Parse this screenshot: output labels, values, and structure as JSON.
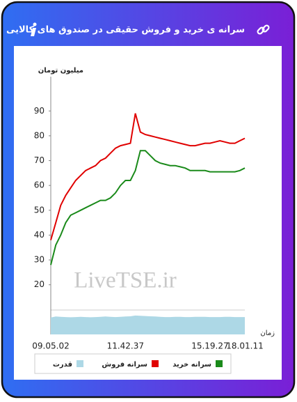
{
  "header": {
    "title": "سرانه ی خرید و فروش حقیقی در صندوق های کالایی"
  },
  "chart_data": {
    "type": "line",
    "y_label": "میلیون تومان",
    "x_label": "زمان",
    "watermark": "LiveTSE.ir",
    "categories": [
      "09.05.02",
      null,
      null,
      null,
      null,
      null,
      null,
      null,
      null,
      null,
      null,
      null,
      null,
      null,
      null,
      "11.42.37",
      null,
      null,
      null,
      null,
      null,
      null,
      null,
      null,
      null,
      null,
      null,
      null,
      null,
      null,
      null,
      null,
      "15.19.27",
      null,
      null,
      null,
      null,
      null,
      null,
      "18.01.11"
    ],
    "ylim": [
      0,
      94
    ],
    "yticks": [
      20,
      30,
      40,
      50,
      60,
      70,
      80,
      90
    ],
    "series": [
      {
        "name": "سرانه خرید",
        "color": "#1a8a1a",
        "values": [
          28,
          36,
          40,
          45,
          48,
          49,
          50,
          51,
          52,
          53,
          54,
          54,
          55,
          57,
          60,
          62,
          62,
          66,
          74,
          74,
          72,
          70,
          69,
          68.5,
          68,
          68,
          67.5,
          67,
          66,
          66,
          66,
          66,
          65.5,
          65.5,
          65.5,
          65.5,
          65.5,
          65.5,
          66,
          67
        ]
      },
      {
        "name": "سرانه فروش",
        "color": "#e00000",
        "values": [
          38,
          45,
          52,
          56,
          59,
          62,
          64,
          66,
          67,
          68,
          70,
          71,
          73,
          75,
          76,
          76.5,
          77,
          89,
          81.5,
          80.5,
          80,
          79.5,
          79,
          78.5,
          78,
          77.5,
          77,
          76.5,
          76,
          76,
          76.5,
          77,
          77,
          77.5,
          78,
          77.5,
          77,
          77,
          78,
          79
        ]
      },
      {
        "name": "قدرت",
        "color": "#add8e6",
        "fill": true,
        "values": [
          6.8,
          7.2,
          7.1,
          7.0,
          6.9,
          7.0,
          7.1,
          7.0,
          6.9,
          7.0,
          7.1,
          7.2,
          7.1,
          7.0,
          7.1,
          7.2,
          7.3,
          7.6,
          7.5,
          7.4,
          7.3,
          7.2,
          7.1,
          7.0,
          7.0,
          7.1,
          7.1,
          7.0,
          7.0,
          7.1,
          7.1,
          7.1,
          7.0,
          7.0,
          7.0,
          7.1,
          7.1,
          7.0,
          7.0,
          7.0
        ]
      }
    ]
  }
}
